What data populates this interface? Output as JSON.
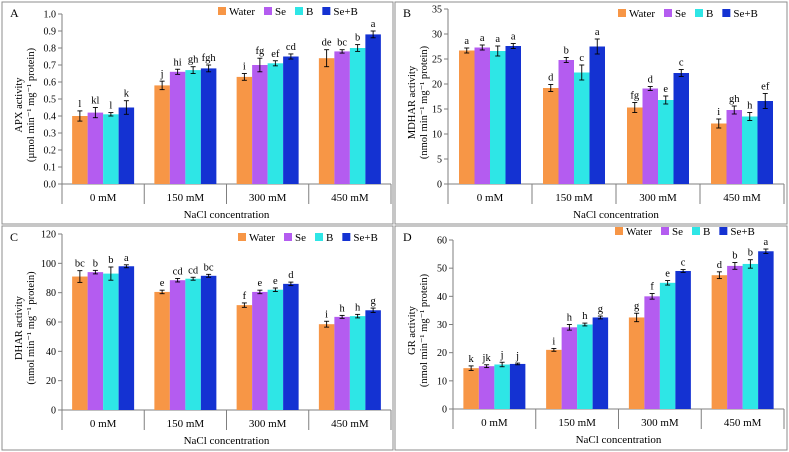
{
  "colors": {
    "Water": "#f79646",
    "Se": "#b45cf0",
    "B": "#2ee6e6",
    "Se+B": "#1432d2",
    "axis": "#7f7f7f",
    "border": "#8c8c8c"
  },
  "chart_data": [
    {
      "type": "bar",
      "panel_letter": "A",
      "title": "",
      "ylabel": "APX activity",
      "ylabel_unit": "(µmol min⁻¹ mg⁻¹ protein)",
      "xlabel": "NaCl concentration",
      "ylim": [
        0,
        1.0
      ],
      "yticks": [
        "0.0",
        "0.1",
        "0.2",
        "0.3",
        "0.4",
        "0.5",
        "0.6",
        "0.7",
        "0.8",
        "0.9",
        "1.0"
      ],
      "categories": [
        "0 mM",
        "150 mM",
        "300 mM",
        "450 mM"
      ],
      "legend": [
        "Water",
        "Se",
        "B",
        "Se+B"
      ],
      "series": [
        {
          "name": "Water",
          "values": [
            0.4,
            0.58,
            0.63,
            0.74
          ],
          "errors": [
            0.03,
            0.025,
            0.02,
            0.05
          ],
          "letters": [
            "l",
            "j",
            "i",
            "de"
          ]
        },
        {
          "name": "Se",
          "values": [
            0.42,
            0.66,
            0.7,
            0.78
          ],
          "errors": [
            0.03,
            0.015,
            0.04,
            0.01
          ],
          "letters": [
            "kl",
            "hi",
            "fg",
            "bc"
          ]
        },
        {
          "name": "B",
          "values": [
            0.41,
            0.67,
            0.71,
            0.8
          ],
          "errors": [
            0.01,
            0.02,
            0.015,
            0.02
          ],
          "letters": [
            "l",
            "gh",
            "ef",
            "b"
          ]
        },
        {
          "name": "Se+B",
          "values": [
            0.45,
            0.68,
            0.75,
            0.88
          ],
          "errors": [
            0.04,
            0.02,
            0.015,
            0.02
          ],
          "letters": [
            "k",
            "fgh",
            "cd",
            "a"
          ]
        }
      ]
    },
    {
      "type": "bar",
      "panel_letter": "B",
      "title": "",
      "ylabel": "MDHAR activity",
      "ylabel_unit": "(nmol min⁻¹ mg⁻¹ protein)",
      "xlabel": "NaCl concentration",
      "ylim": [
        0,
        35
      ],
      "yticks": [
        "0",
        "5",
        "10",
        "15",
        "20",
        "25",
        "30",
        "35"
      ],
      "categories": [
        "0 mM",
        "150 mM",
        "300 mM",
        "450 mM"
      ],
      "legend": [
        "Water",
        "Se",
        "B",
        "Se+B"
      ],
      "series": [
        {
          "name": "Water",
          "values": [
            26.7,
            19.2,
            15.3,
            12.1
          ],
          "errors": [
            0.5,
            0.7,
            1.0,
            0.9
          ],
          "letters": [
            "a",
            "d",
            "fg",
            "i"
          ]
        },
        {
          "name": "Se",
          "values": [
            27.3,
            24.8,
            19.1,
            14.8
          ],
          "errors": [
            0.5,
            0.5,
            0.4,
            0.8
          ],
          "letters": [
            "a",
            "b",
            "d",
            "gh"
          ]
        },
        {
          "name": "B",
          "values": [
            26.6,
            22.3,
            16.8,
            13.5
          ],
          "errors": [
            1.0,
            1.5,
            0.8,
            0.8
          ],
          "letters": [
            "a",
            "c",
            "e",
            "h"
          ]
        },
        {
          "name": "Se+B",
          "values": [
            27.6,
            27.5,
            22.2,
            16.6
          ],
          "errors": [
            0.5,
            1.5,
            0.7,
            1.5
          ],
          "letters": [
            "a",
            "a",
            "c",
            "ef"
          ]
        }
      ]
    },
    {
      "type": "bar",
      "panel_letter": "C",
      "title": "",
      "ylabel": "DHAR activity",
      "ylabel_unit": "(nmol min⁻¹ mg⁻¹ protein)",
      "xlabel": "NaCl concentration",
      "ylim": [
        0,
        120
      ],
      "yticks": [
        "0",
        "20",
        "40",
        "60",
        "80",
        "100",
        "120"
      ],
      "categories": [
        "0 mM",
        "150 mM",
        "300 mM",
        "450 mM"
      ],
      "legend": [
        "Water",
        "Se",
        "B",
        "Se+B"
      ],
      "series": [
        {
          "name": "Water",
          "values": [
            91.0,
            80.5,
            71.5,
            58.5
          ],
          "errors": [
            4.0,
            1.2,
            1.5,
            2.0
          ],
          "letters": [
            "bc",
            "e",
            "f",
            "i"
          ]
        },
        {
          "name": "Se",
          "values": [
            94.0,
            88.5,
            80.5,
            63.5
          ],
          "errors": [
            1.2,
            1.2,
            1.2,
            1.0
          ],
          "letters": [
            "b",
            "cd",
            "e",
            "h"
          ]
        },
        {
          "name": "B",
          "values": [
            93.0,
            89.5,
            82.0,
            64.0
          ],
          "errors": [
            4.5,
            1.0,
            1.2,
            1.2
          ],
          "letters": [
            "b",
            "cd",
            "e",
            "h"
          ]
        },
        {
          "name": "Se+B",
          "values": [
            98.0,
            91.5,
            86.0,
            68.0
          ],
          "errors": [
            1.0,
            1.0,
            1.2,
            1.5
          ],
          "letters": [
            "a",
            "bc",
            "d",
            "g"
          ]
        }
      ]
    },
    {
      "type": "bar",
      "panel_letter": "D",
      "title": "",
      "ylabel": "GR activity",
      "ylabel_unit": "(nmol min⁻¹ mg⁻¹ protein)",
      "xlabel": "NaCl concentration",
      "ylim": [
        0,
        60
      ],
      "yticks": [
        "0",
        "10",
        "20",
        "30",
        "40",
        "50",
        "60"
      ],
      "categories": [
        "0 mM",
        "150 mM",
        "300 mM",
        "450 mM"
      ],
      "legend": [
        "Water",
        "Se",
        "B",
        "Se+B"
      ],
      "series": [
        {
          "name": "Water",
          "values": [
            14.5,
            21.0,
            32.5,
            47.5
          ],
          "errors": [
            0.8,
            0.5,
            1.5,
            1.2
          ],
          "letters": [
            "k",
            "i",
            "g",
            "d"
          ]
        },
        {
          "name": "Se",
          "values": [
            15.2,
            29.0,
            40.0,
            50.8
          ],
          "errors": [
            0.5,
            1.0,
            1.0,
            1.2
          ],
          "letters": [
            "jk",
            "h",
            "f",
            "b"
          ]
        },
        {
          "name": "B",
          "values": [
            15.8,
            30.0,
            44.8,
            51.5
          ],
          "errors": [
            0.8,
            0.5,
            0.8,
            1.5
          ],
          "letters": [
            "j",
            "h",
            "e",
            "b"
          ]
        },
        {
          "name": "Se+B",
          "values": [
            16.0,
            32.5,
            49.0,
            56.0
          ],
          "errors": [
            0.3,
            0.5,
            0.5,
            0.8
          ],
          "letters": [
            "j",
            "g",
            "c",
            "a"
          ]
        }
      ]
    }
  ]
}
